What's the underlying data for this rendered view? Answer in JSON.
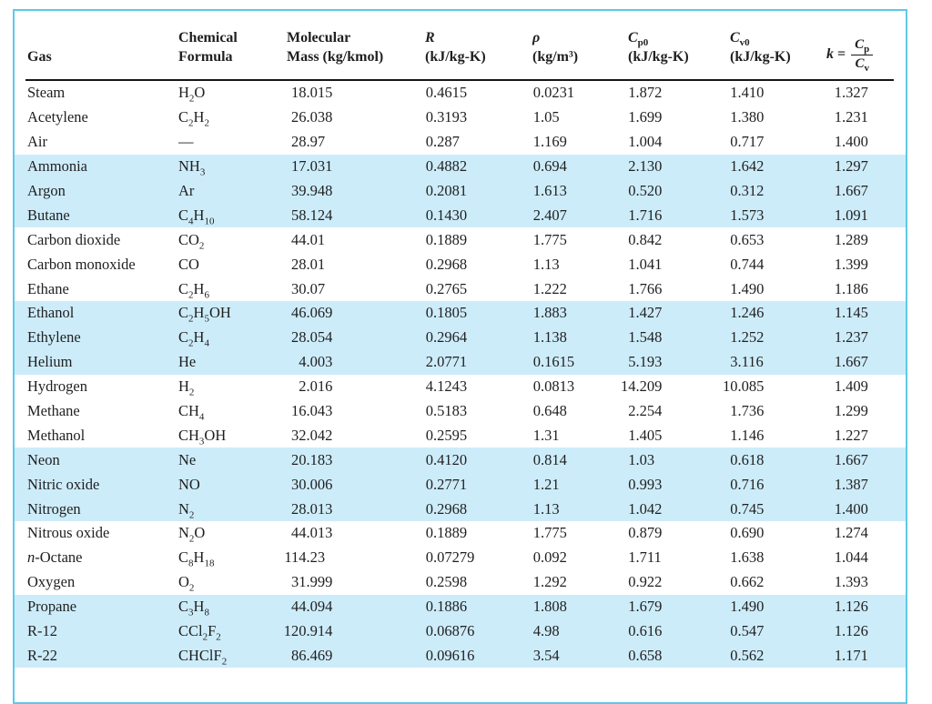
{
  "colors": {
    "border": "#5fc8e9",
    "band": "#cdecfa",
    "text": "#1f1f1f",
    "rule": "#161616"
  },
  "table": {
    "header": {
      "gas": "Gas",
      "formula": [
        "Chemical",
        "Formula"
      ],
      "mass": [
        "Molecular",
        "Mass (kg/kmol)"
      ],
      "r": [
        "R",
        "(kJ/kg-K)"
      ],
      "rho": [
        "ρ",
        "(kg/m³)"
      ],
      "cp0": {
        "sym": "C",
        "sub": "p0",
        "unit": "(kJ/kg-K)"
      },
      "cv0": {
        "sym": "C",
        "sub": "v0",
        "unit": "(kJ/kg-K)"
      },
      "k": {
        "sym": "k",
        "eq": "=",
        "num_sym": "C",
        "num_sub": "p",
        "den_sym": "C",
        "den_sub": "v"
      }
    },
    "rows": [
      {
        "gas": "Steam",
        "formula": "H2O",
        "mass": "18.015",
        "r": "0.4615",
        "rho": "0.0231",
        "cp0": "1.872",
        "cv0": "1.410",
        "k": "1.327"
      },
      {
        "gas": "Acetylene",
        "formula": "C2H2",
        "mass": "26.038",
        "r": "0.3193",
        "rho": "1.05",
        "cp0": "1.699",
        "cv0": "1.380",
        "k": "1.231"
      },
      {
        "gas": "Air",
        "formula": "—",
        "mass": "28.97",
        "r": "0.287",
        "rho": "1.169",
        "cp0": "1.004",
        "cv0": "0.717",
        "k": "1.400"
      },
      {
        "gas": "Ammonia",
        "formula": "NH3",
        "mass": "17.031",
        "r": "0.4882",
        "rho": "0.694",
        "cp0": "2.130",
        "cv0": "1.642",
        "k": "1.297"
      },
      {
        "gas": "Argon",
        "formula": "Ar",
        "mass": "39.948",
        "r": "0.2081",
        "rho": "1.613",
        "cp0": "0.520",
        "cv0": "0.312",
        "k": "1.667"
      },
      {
        "gas": "Butane",
        "formula": "C4H10",
        "mass": "58.124",
        "r": "0.1430",
        "rho": "2.407",
        "cp0": "1.716",
        "cv0": "1.573",
        "k": "1.091"
      },
      {
        "gas": "Carbon dioxide",
        "formula": "CO2",
        "mass": "44.01",
        "r": "0.1889",
        "rho": "1.775",
        "cp0": "0.842",
        "cv0": "0.653",
        "k": "1.289"
      },
      {
        "gas": "Carbon monoxide",
        "formula": "CO",
        "mass": "28.01",
        "r": "0.2968",
        "rho": "1.13",
        "cp0": "1.041",
        "cv0": "0.744",
        "k": "1.399"
      },
      {
        "gas": "Ethane",
        "formula": "C2H6",
        "mass": "30.07",
        "r": "0.2765",
        "rho": "1.222",
        "cp0": "1.766",
        "cv0": "1.490",
        "k": "1.186"
      },
      {
        "gas": "Ethanol",
        "formula": "C2H5OH",
        "mass": "46.069",
        "r": "0.1805",
        "rho": "1.883",
        "cp0": "1.427",
        "cv0": "1.246",
        "k": "1.145"
      },
      {
        "gas": "Ethylene",
        "formula": "C2H4",
        "mass": "28.054",
        "r": "0.2964",
        "rho": "1.138",
        "cp0": "1.548",
        "cv0": "1.252",
        "k": "1.237"
      },
      {
        "gas": "Helium",
        "formula": "He",
        "mass": "4.003",
        "r": "2.0771",
        "rho": "0.1615",
        "cp0": "5.193",
        "cv0": "3.116",
        "k": "1.667"
      },
      {
        "gas": "Hydrogen",
        "formula": "H2",
        "mass": "2.016",
        "r": "4.1243",
        "rho": "0.0813",
        "cp0": "14.209",
        "cv0": "10.085",
        "k": "1.409"
      },
      {
        "gas": "Methane",
        "formula": "CH4",
        "mass": "16.043",
        "r": "0.5183",
        "rho": "0.648",
        "cp0": "2.254",
        "cv0": "1.736",
        "k": "1.299"
      },
      {
        "gas": "Methanol",
        "formula": "CH3OH",
        "mass": "32.042",
        "r": "0.2595",
        "rho": "1.31",
        "cp0": "1.405",
        "cv0": "1.146",
        "k": "1.227"
      },
      {
        "gas": "Neon",
        "formula": "Ne",
        "mass": "20.183",
        "r": "0.4120",
        "rho": "0.814",
        "cp0": "1.03",
        "cv0": "0.618",
        "k": "1.667"
      },
      {
        "gas": "Nitric oxide",
        "formula": "NO",
        "mass": "30.006",
        "r": "0.2771",
        "rho": "1.21",
        "cp0": "0.993",
        "cv0": "0.716",
        "k": "1.387"
      },
      {
        "gas": "Nitrogen",
        "formula": "N2",
        "mass": "28.013",
        "r": "0.2968",
        "rho": "1.13",
        "cp0": "1.042",
        "cv0": "0.745",
        "k": "1.400"
      },
      {
        "gas": "Nitrous oxide",
        "formula": "N2O",
        "mass": "44.013",
        "r": "0.1889",
        "rho": "1.775",
        "cp0": "0.879",
        "cv0": "0.690",
        "k": "1.274"
      },
      {
        "gas": "n-Octane",
        "formula": "C8H18",
        "mass": "114.23",
        "r": "0.07279",
        "rho": "0.092",
        "cp0": "1.711",
        "cv0": "1.638",
        "k": "1.044"
      },
      {
        "gas": "Oxygen",
        "formula": "O2",
        "mass": "31.999",
        "r": "0.2598",
        "rho": "1.292",
        "cp0": "0.922",
        "cv0": "0.662",
        "k": "1.393"
      },
      {
        "gas": "Propane",
        "formula": "C3H8",
        "mass": "44.094",
        "r": "0.1886",
        "rho": "1.808",
        "cp0": "1.679",
        "cv0": "1.490",
        "k": "1.126"
      },
      {
        "gas": "R-12",
        "formula": "CCl2F2",
        "mass": "120.914",
        "r": "0.06876",
        "rho": "4.98",
        "cp0": "0.616",
        "cv0": "0.547",
        "k": "1.126"
      },
      {
        "gas": "R-22",
        "formula": "CHClF2",
        "mass": "86.469",
        "r": "0.09616",
        "rho": "3.54",
        "cp0": "0.658",
        "cv0": "0.562",
        "k": "1.171"
      }
    ]
  }
}
